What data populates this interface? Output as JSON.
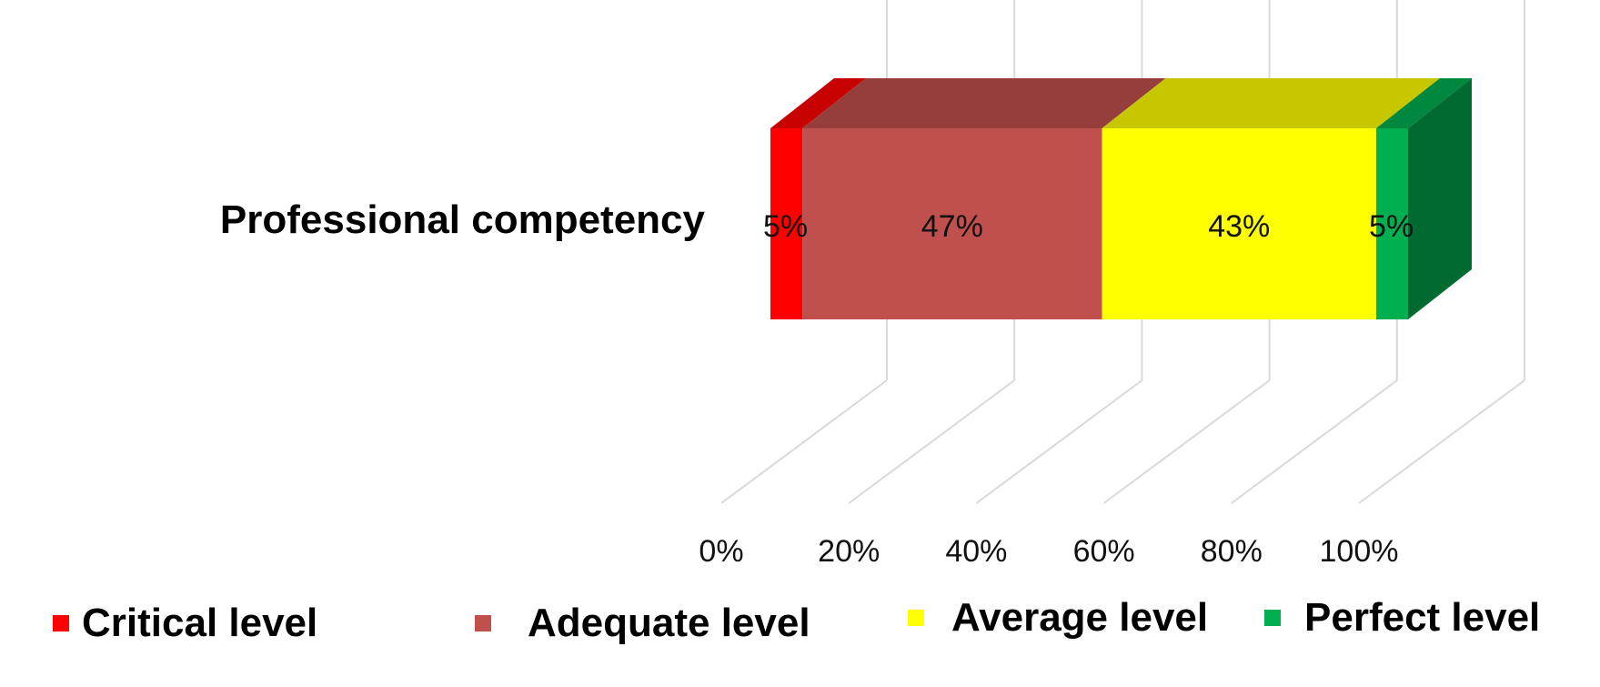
{
  "chart_data": {
    "type": "bar",
    "orientation": "horizontal",
    "stacked": "percent",
    "three_d": true,
    "categories": [
      "Professional competency"
    ],
    "series": [
      {
        "name": "Critical level",
        "values": [
          5
        ],
        "label": "5%",
        "color": "#ff0000"
      },
      {
        "name": "Adequate level",
        "values": [
          47
        ],
        "label": "47%",
        "color": "#c0504d"
      },
      {
        "name": "Average level",
        "values": [
          43
        ],
        "label": "43%",
        "color": "#ffff00"
      },
      {
        "name": "Perfect level",
        "values": [
          5
        ],
        "label": "5%",
        "color": "#00b050"
      }
    ],
    "x_ticks": [
      "0%",
      "20%",
      "40%",
      "60%",
      "80%",
      "100%"
    ],
    "xlim": [
      0,
      100
    ],
    "grid": true,
    "legend_position": "bottom"
  }
}
